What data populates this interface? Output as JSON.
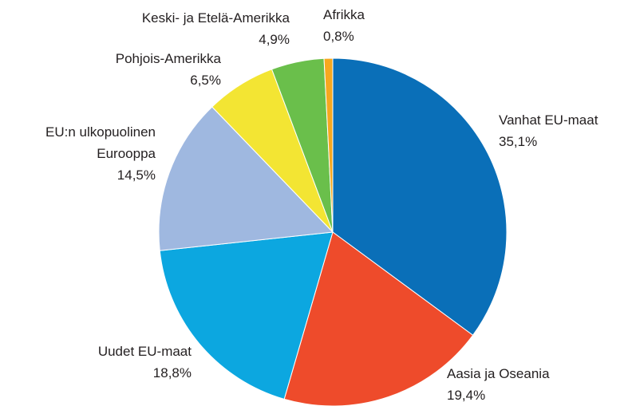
{
  "chart_data": {
    "type": "pie",
    "categories": [
      "Vanhat EU-maat",
      "Aasia ja Oseania",
      "Uudet EU-maat",
      "EU:n ulkopuolinen Eurooppa",
      "Pohjois-Amerikka",
      "Keski- ja Etelä-Amerikka",
      "Afrikka"
    ],
    "values": [
      35.1,
      19.4,
      18.8,
      14.5,
      6.5,
      4.9,
      0.8
    ],
    "value_labels": [
      "35,1%",
      "19,4%",
      "18,8%",
      "14,5%",
      "6,5%",
      "4,9%",
      "0,8%"
    ],
    "colors": [
      "#0a6fb8",
      "#ee4b2b",
      "#0ca7e0",
      "#9fb8e0",
      "#f3e533",
      "#6abf4b",
      "#f6a81f"
    ]
  }
}
